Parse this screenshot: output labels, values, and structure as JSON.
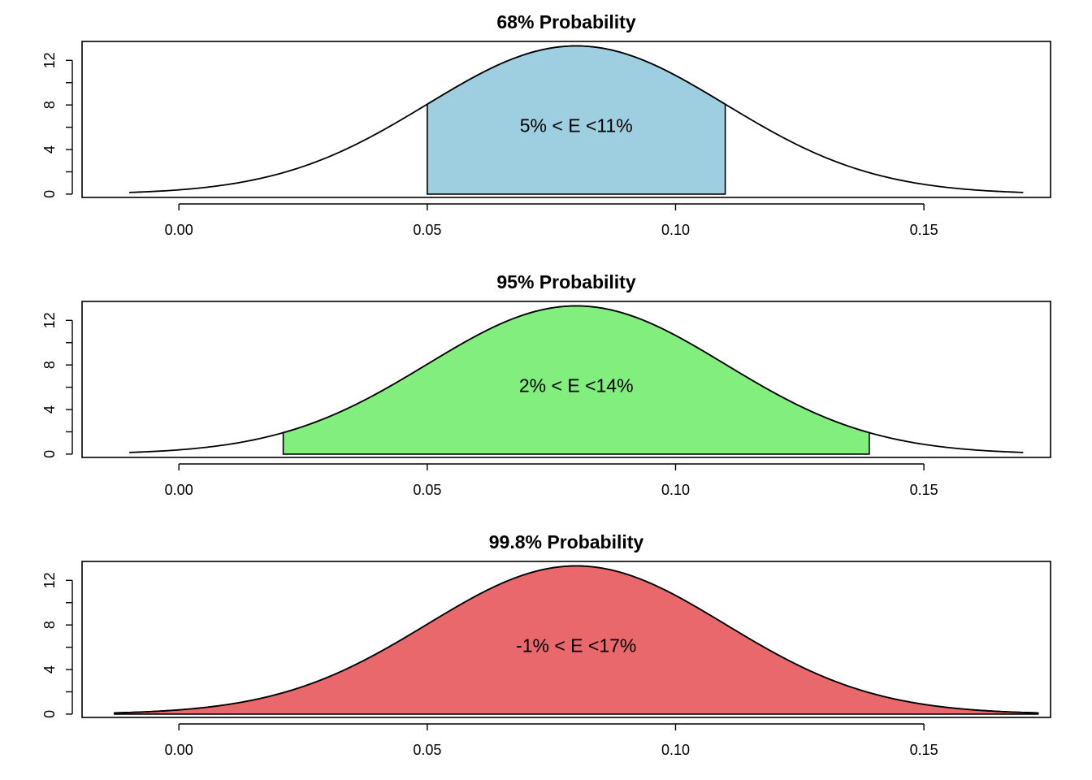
{
  "chart_data": [
    {
      "type": "area",
      "title": "68% Probability",
      "xlabel": "",
      "ylabel": "",
      "distribution": {
        "mean": 0.08,
        "sd": 0.03
      },
      "curve_x_range": [
        -0.01,
        0.17
      ],
      "shaded_range": [
        0.05,
        0.11
      ],
      "fill_color": "#9ecfe1",
      "annotation": "5% < E <11%",
      "xlim": [
        -0.0195,
        0.1755
      ],
      "ylim": [
        -0.3,
        13.7
      ],
      "x_ticks": [
        0.0,
        0.05,
        0.1,
        0.15
      ],
      "x_tick_labels": [
        "0.00",
        "0.05",
        "0.10",
        "0.15"
      ],
      "y_ticks": [
        0,
        2,
        4,
        6,
        8,
        10,
        12
      ],
      "y_tick_labels": [
        "0",
        "",
        "4",
        "",
        "8",
        "",
        "12"
      ]
    },
    {
      "type": "area",
      "title": "95% Probability",
      "xlabel": "",
      "ylabel": "",
      "distribution": {
        "mean": 0.08,
        "sd": 0.03
      },
      "curve_x_range": [
        -0.01,
        0.17
      ],
      "shaded_range": [
        0.021,
        0.139
      ],
      "fill_color": "#82ee7e",
      "annotation": "2% < E <14%",
      "xlim": [
        -0.0195,
        0.1755
      ],
      "ylim": [
        -0.3,
        13.7
      ],
      "x_ticks": [
        0.0,
        0.05,
        0.1,
        0.15
      ],
      "x_tick_labels": [
        "0.00",
        "0.05",
        "0.10",
        "0.15"
      ],
      "y_ticks": [
        0,
        2,
        4,
        6,
        8,
        10,
        12
      ],
      "y_tick_labels": [
        "0",
        "",
        "4",
        "",
        "8",
        "",
        "12"
      ]
    },
    {
      "type": "area",
      "title": "99.8% Probability",
      "xlabel": "",
      "ylabel": "",
      "distribution": {
        "mean": 0.08,
        "sd": 0.03
      },
      "curve_x_range": [
        -0.013,
        0.173
      ],
      "shaded_range": [
        -0.013,
        0.173
      ],
      "fill_color": "#e8686c",
      "annotation": "-1% < E <17%",
      "xlim": [
        -0.0195,
        0.1755
      ],
      "ylim": [
        -0.3,
        13.7
      ],
      "x_ticks": [
        0.0,
        0.05,
        0.1,
        0.15
      ],
      "x_tick_labels": [
        "0.00",
        "0.05",
        "0.10",
        "0.15"
      ],
      "y_ticks": [
        0,
        2,
        4,
        6,
        8,
        10,
        12
      ],
      "y_tick_labels": [
        "0",
        "",
        "4",
        "",
        "8",
        "",
        "12"
      ]
    }
  ]
}
